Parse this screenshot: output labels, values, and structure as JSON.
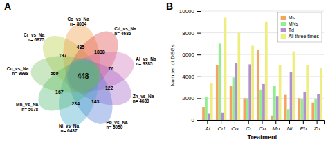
{
  "chart_data": [
    {
      "type": "venn",
      "title": "A",
      "categories": [
        "Cr_vs_Na\nn= 6875",
        "Co_vs_Na\nn= 8054",
        "Cd_vs_Na\nn= 4686",
        "Al_vs_Na\nn= 3385",
        "Zn_vs_Na\nn= 4689",
        "Pb_vs_Na\nn= 5050",
        "Ni_vs_Na\nn= 6437",
        "Mn_vs_Na\nn= 5078",
        "Cu_vs_Na\nn= 9998"
      ],
      "values": [
        197,
        435,
        1838,
        76,
        122,
        143,
        234,
        167,
        569
      ],
      "colors": [
        "#b8cc40",
        "#f09840",
        "#e04848",
        "#d070b8",
        "#a060c8",
        "#5078d8",
        "#40a8c8",
        "#50b870",
        "#78c060"
      ],
      "intersection": 448
    },
    {
      "type": "bar",
      "title": "B",
      "categories": [
        "Al",
        "Cd",
        "Co",
        "Cr",
        "Cu",
        "Mn",
        "Ni",
        "Pb",
        "Zn"
      ],
      "series": [
        {
          "name": "Ms",
          "color": "#f4a460",
          "values": [
            1200,
            5000,
            3100,
            2000,
            6400,
            400,
            2300,
            2000,
            1600
          ]
        },
        {
          "name": "MNs",
          "color": "#90ee90",
          "values": [
            2100,
            7000,
            3900,
            2000,
            2800,
            3100,
            1000,
            1900,
            1900
          ]
        },
        {
          "name": "Td",
          "color": "#b090d0",
          "values": [
            600,
            650,
            5200,
            5100,
            3300,
            2200,
            4400,
            2600,
            2400
          ]
        },
        {
          "name": "All three times",
          "color": "#eeee80",
          "values": [
            3400,
            9400,
            8000,
            6800,
            9000,
            5000,
            6300,
            5000,
            4800
          ]
        }
      ],
      "xlabel": "Treatment",
      "ylabel": "Number of DEGs",
      "ylim": [
        0,
        10000
      ],
      "yticks": [
        0,
        2000,
        4000,
        6000,
        8000,
        10000
      ],
      "grid": true,
      "legend": "upper right"
    }
  ]
}
